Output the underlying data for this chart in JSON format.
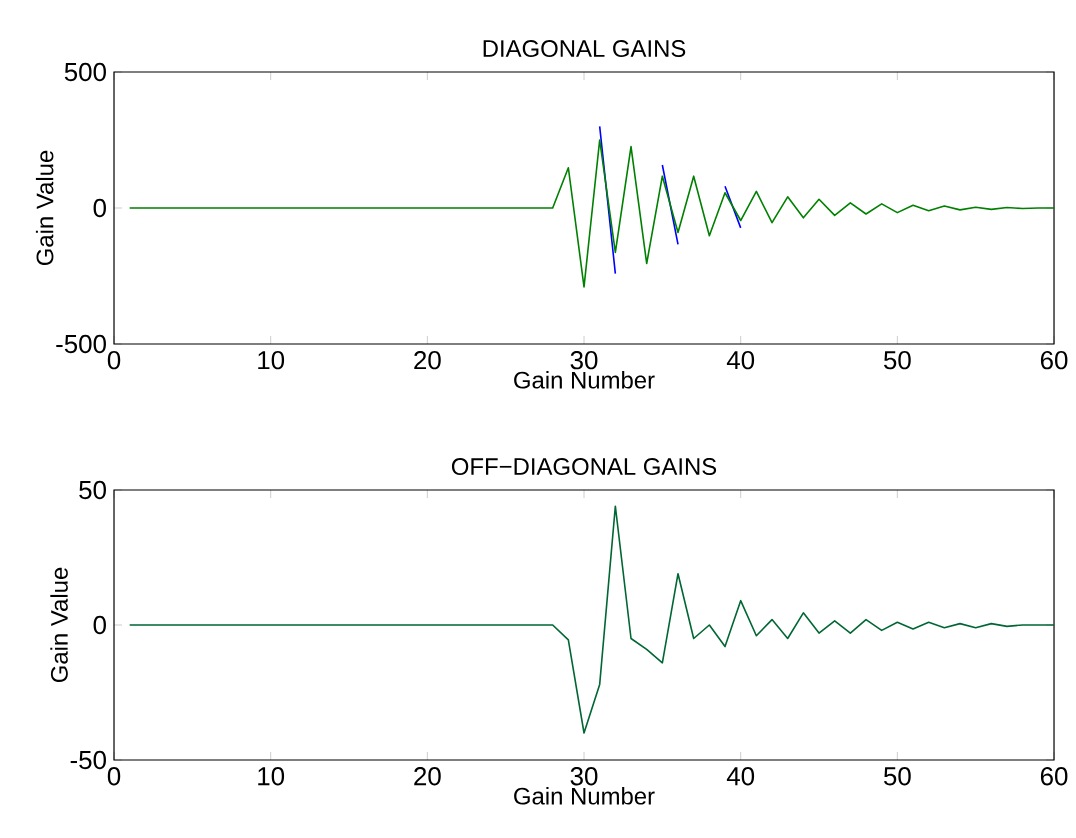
{
  "chart_data": [
    {
      "type": "line",
      "title": "DIAGONAL GAINS",
      "xlabel": "Gain Number",
      "ylabel": "Gain Value",
      "x": [
        1,
        2,
        3,
        4,
        5,
        6,
        7,
        8,
        9,
        10,
        11,
        12,
        13,
        14,
        15,
        16,
        17,
        18,
        19,
        20,
        21,
        22,
        23,
        24,
        25,
        26,
        27,
        28,
        29,
        30,
        31,
        32,
        33,
        34,
        35,
        36,
        37,
        38,
        39,
        40,
        41,
        42,
        43,
        44,
        45,
        46,
        47,
        48,
        49,
        50,
        51,
        52,
        53,
        54,
        55,
        56,
        57,
        58,
        59,
        60
      ],
      "series": [
        {
          "color": "#0000ff",
          "values": [
            null,
            null,
            null,
            null,
            null,
            null,
            null,
            null,
            null,
            null,
            null,
            null,
            null,
            null,
            null,
            null,
            null,
            null,
            null,
            null,
            null,
            null,
            null,
            null,
            null,
            null,
            null,
            null,
            null,
            null,
            300,
            -241,
            null,
            null,
            158,
            -134,
            null,
            null,
            80,
            -73,
            null,
            null,
            null,
            null,
            null,
            null,
            null,
            null,
            null,
            null,
            null,
            null,
            null,
            null,
            null,
            null,
            null,
            null,
            null,
            null
          ]
        },
        {
          "color": "#008000",
          "values": [
            0,
            0,
            0,
            0,
            0,
            0,
            0,
            0,
            0,
            0,
            0,
            0,
            0,
            0,
            0,
            0,
            0,
            0,
            0,
            0,
            0,
            0,
            0,
            0,
            0,
            0,
            0,
            0,
            148,
            -290,
            250,
            -163,
            226,
            -204,
            117,
            -90,
            117,
            -102,
            56,
            -46,
            61,
            -54,
            41,
            -36,
            32,
            -27,
            19,
            -22,
            15,
            -17,
            10,
            -10,
            7,
            -7,
            3,
            -5,
            2,
            -2,
            0,
            0
          ]
        }
      ],
      "xlim": [
        0,
        60
      ],
      "ylim": [
        -500,
        500
      ],
      "xticks": [
        0,
        10,
        20,
        30,
        40,
        50,
        60
      ],
      "yticks": [
        -500,
        0,
        500
      ]
    },
    {
      "type": "line",
      "title": "OFF−DIAGONAL GAINS",
      "xlabel": "Gain Number",
      "ylabel": "Gain Value",
      "x": [
        1,
        2,
        3,
        4,
        5,
        6,
        7,
        8,
        9,
        10,
        11,
        12,
        13,
        14,
        15,
        16,
        17,
        18,
        19,
        20,
        21,
        22,
        23,
        24,
        25,
        26,
        27,
        28,
        29,
        30,
        31,
        32,
        33,
        34,
        35,
        36,
        37,
        38,
        39,
        40,
        41,
        42,
        43,
        44,
        45,
        46,
        47,
        48,
        49,
        50,
        51,
        52,
        53,
        54,
        55,
        56,
        57,
        58,
        59,
        60
      ],
      "series": [
        {
          "color": "#006633",
          "values": [
            0,
            0,
            0,
            0,
            0,
            0,
            0,
            0,
            0,
            0,
            0,
            0,
            0,
            0,
            0,
            0,
            0,
            0,
            0,
            0,
            0,
            0,
            0,
            0,
            0,
            0,
            0,
            0,
            -5.5,
            -40,
            -22,
            44,
            -5,
            -9,
            -14,
            19,
            -5,
            0,
            -8,
            9,
            -4,
            2,
            -5,
            4.5,
            -3,
            1.5,
            -3,
            2,
            -2,
            1,
            -1.5,
            1,
            -1,
            0.5,
            -1,
            0.5,
            -0.5,
            0,
            0,
            0
          ]
        }
      ],
      "xlim": [
        0,
        60
      ],
      "ylim": [
        -50,
        50
      ],
      "xticks": [
        0,
        10,
        20,
        30,
        40,
        50,
        60
      ],
      "yticks": [
        -50,
        0,
        50
      ]
    }
  ]
}
